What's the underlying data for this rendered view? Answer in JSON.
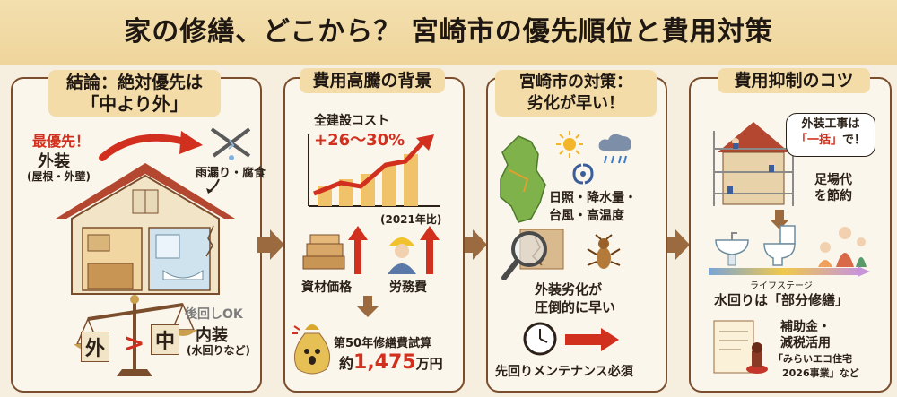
{
  "title": "家の修繕、どこから？ 宮崎市の優先順位と費用対策",
  "panel1": {
    "heading_line1": "結論：絶対優先は",
    "heading_line2": "「中より外」",
    "top_priority": "最優先！",
    "exterior": "外装",
    "exterior_sub": "(屋根・外壁)",
    "leak": "雨漏り・腐食",
    "later_ok": "後回しOK",
    "interior": "内装",
    "interior_sub": "(水回りなど)",
    "scale_left": "外",
    "scale_mid": ">",
    "scale_right": "中"
  },
  "panel2": {
    "heading": "費用高騰の背景",
    "chart_title": "全建設コスト",
    "chart_value": "+26〜30%",
    "chart_note": "(2021年比)",
    "materials": "資材価格",
    "labor": "労務費",
    "estimate_label": "第50年修繕費試算",
    "estimate_prefix": "約",
    "estimate_value": "1,475",
    "estimate_unit": "万円"
  },
  "panel3": {
    "heading_line1": "宮崎市の対策：",
    "heading_line2": "劣化が早い！",
    "climate_line1": "日照・降水量・",
    "climate_line2": "台風・高温度",
    "deterioration_line1": "外装劣化が",
    "deterioration_line2": "圧倒的に早い",
    "maintenance": "先回りメンテナンス必須"
  },
  "panel4": {
    "heading": "費用抑制のコツ",
    "bubble_line1": "外装工事は",
    "bubble_em": "「一括」",
    "bubble_tail": "で！",
    "scaffold_line1": "足場代",
    "scaffold_line2": "を節約",
    "lifestage": "ライフステージ",
    "water_partial": "水回りは「部分修繕」",
    "subsidy_line1": "補助金・",
    "subsidy_line2": "減税活用",
    "eco_line1": "「みらいエコ住宅",
    "eco_line2": "2026事業」など"
  },
  "colors": {
    "accent_red": "#d2301f",
    "frame_brown": "#7a4e2c",
    "arrow_brown": "#9b6a3f",
    "tab_bg": "#f3dca8"
  }
}
